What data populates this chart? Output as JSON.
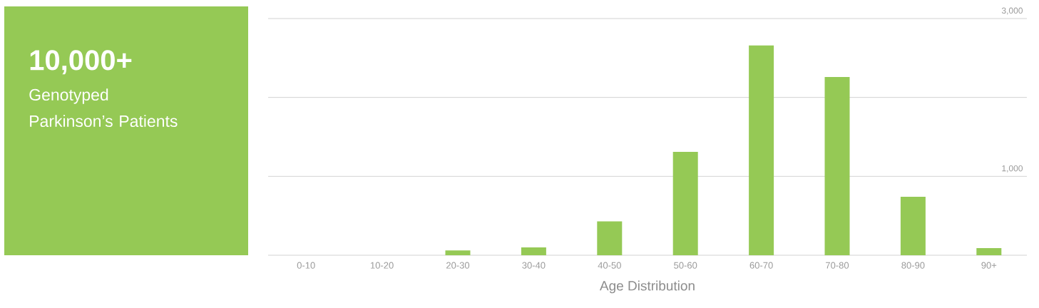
{
  "chart_data": [
    {
      "type": "other",
      "title": "10,000+",
      "subtitle": "Genotyped Parkinson’s Patients",
      "color": "#95c955"
    },
    {
      "type": "bar",
      "xlabel": "Age Distribution",
      "categories": [
        "0-10",
        "10-20",
        "20-30",
        "30-40",
        "40-50",
        "50-60",
        "60-70",
        "70-80",
        "80-90",
        "90+"
      ],
      "values": [
        0,
        0,
        60,
        100,
        430,
        1310,
        2660,
        2260,
        740,
        90
      ],
      "color": "#95c955",
      "ylim": [
        0,
        3000
      ],
      "yticks": [
        {
          "value": 0,
          "label": null
        },
        {
          "value": 1000,
          "label": "1,000"
        },
        {
          "value": 2000,
          "label": null
        },
        {
          "value": 3000,
          "label": "3,000"
        }
      ],
      "grid": "y"
    }
  ]
}
